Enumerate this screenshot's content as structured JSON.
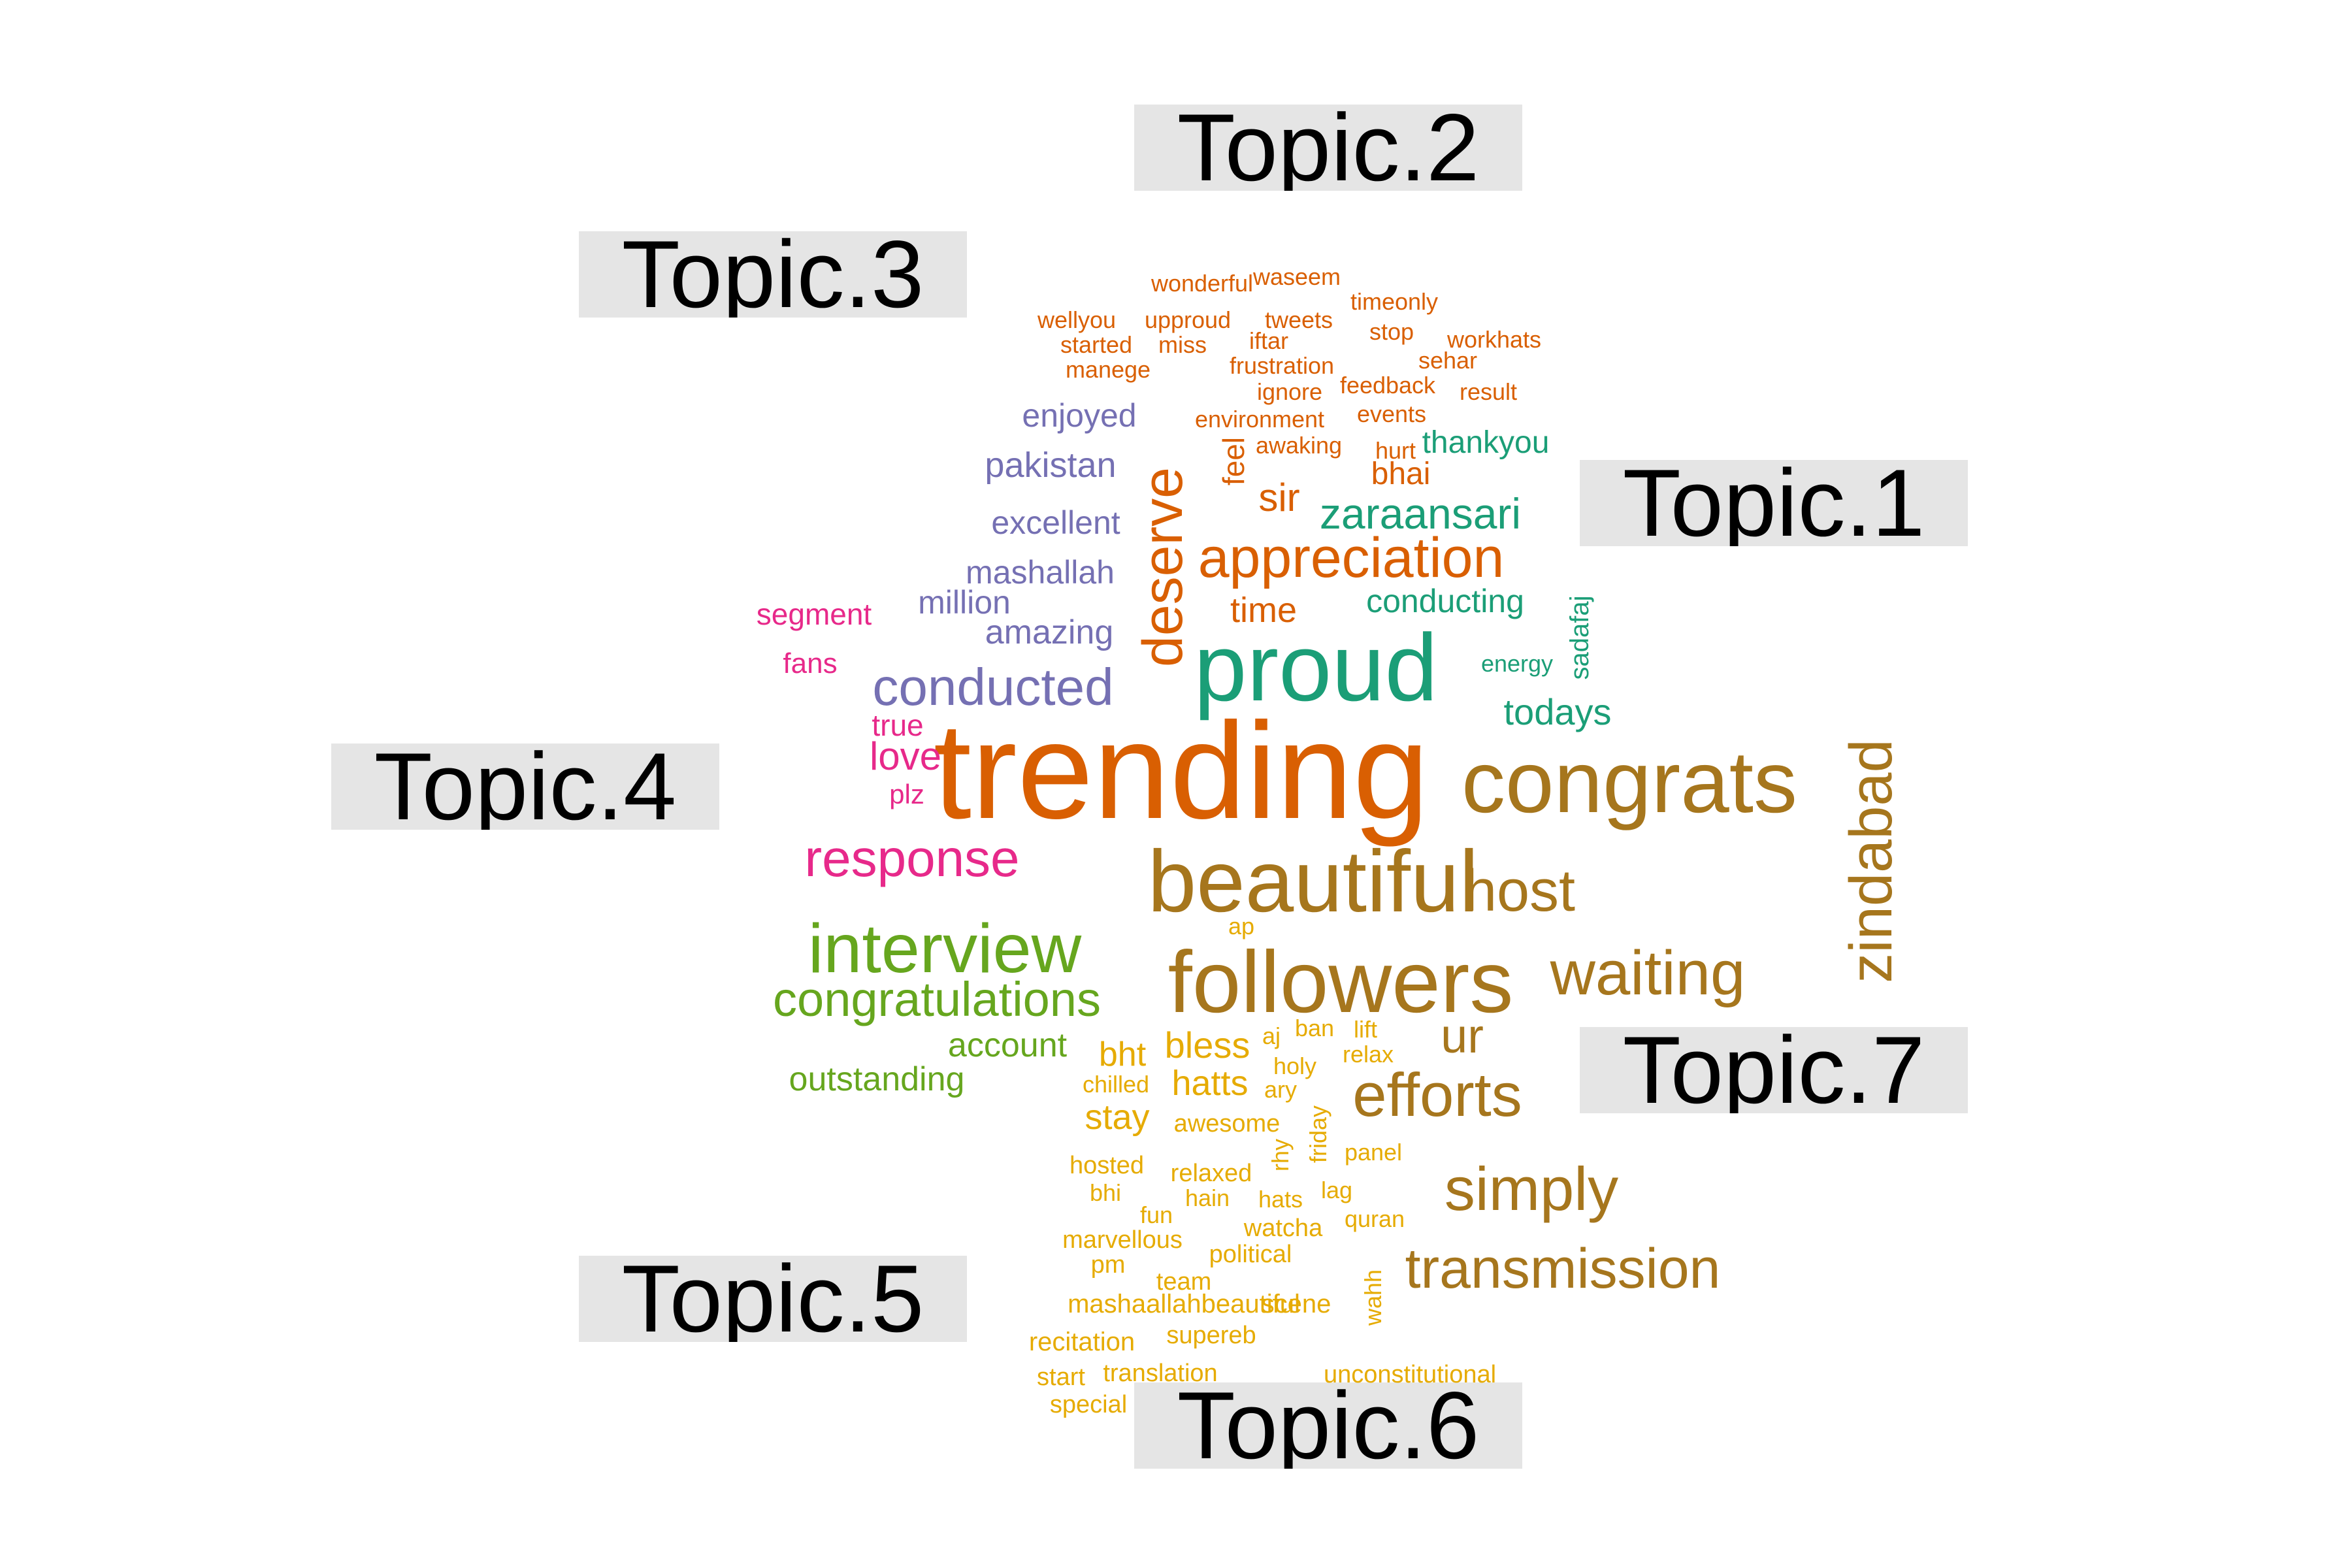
{
  "colors": {
    "topic1": "#1b9e77",
    "topic2": "#d95f02",
    "topic3": "#7570b3",
    "topic4": "#e7298a",
    "topic5": "#66a61e",
    "topic6": "#e6ab02",
    "topic7": "#a6761d",
    "label_background": "#e5e5e5",
    "label_text": "#000000"
  },
  "topics": [
    "Topic.1",
    "Topic.2",
    "Topic.3",
    "Topic.4",
    "Topic.5",
    "Topic.6",
    "Topic.7"
  ],
  "words": [
    {
      "text": "wonderful",
      "topic": 2
    },
    {
      "text": "waseem",
      "topic": 2
    },
    {
      "text": "timeonly",
      "topic": 2
    },
    {
      "text": "wellyou",
      "topic": 2
    },
    {
      "text": "upproud",
      "topic": 2
    },
    {
      "text": "tweets",
      "topic": 2
    },
    {
      "text": "stop",
      "topic": 2
    },
    {
      "text": "workhats",
      "topic": 2
    },
    {
      "text": "started",
      "topic": 2
    },
    {
      "text": "miss",
      "topic": 2
    },
    {
      "text": "iftar",
      "topic": 2
    },
    {
      "text": "sehar",
      "topic": 2
    },
    {
      "text": "manege",
      "topic": 2
    },
    {
      "text": "frustration",
      "topic": 2
    },
    {
      "text": "ignore",
      "topic": 2
    },
    {
      "text": "feedback",
      "topic": 2
    },
    {
      "text": "result",
      "topic": 2
    },
    {
      "text": "environment",
      "topic": 2
    },
    {
      "text": "events",
      "topic": 2
    },
    {
      "text": "awaking",
      "topic": 2
    },
    {
      "text": "hurt",
      "topic": 2
    },
    {
      "text": "feel",
      "topic": 2
    },
    {
      "text": "bhai",
      "topic": 2
    },
    {
      "text": "sir",
      "topic": 2
    },
    {
      "text": "deserve",
      "topic": 2
    },
    {
      "text": "appreciation",
      "topic": 2
    },
    {
      "text": "time",
      "topic": 2
    },
    {
      "text": "trending",
      "topic": 2
    },
    {
      "text": "thankyou",
      "topic": 1
    },
    {
      "text": "zaraansari",
      "topic": 1
    },
    {
      "text": "conducting",
      "topic": 1
    },
    {
      "text": "sadafaj",
      "topic": 1
    },
    {
      "text": "energy",
      "topic": 1
    },
    {
      "text": "proud",
      "topic": 1
    },
    {
      "text": "todays",
      "topic": 1
    },
    {
      "text": "enjoyed",
      "topic": 3
    },
    {
      "text": "pakistan",
      "topic": 3
    },
    {
      "text": "excellent",
      "topic": 3
    },
    {
      "text": "mashallah",
      "topic": 3
    },
    {
      "text": "million",
      "topic": 3
    },
    {
      "text": "amazing",
      "topic": 3
    },
    {
      "text": "conducted",
      "topic": 3
    },
    {
      "text": "segment",
      "topic": 4
    },
    {
      "text": "fans",
      "topic": 4
    },
    {
      "text": "true",
      "topic": 4
    },
    {
      "text": "love",
      "topic": 4
    },
    {
      "text": "plz",
      "topic": 4
    },
    {
      "text": "response",
      "topic": 4
    },
    {
      "text": "interview",
      "topic": 5
    },
    {
      "text": "congratulations",
      "topic": 5
    },
    {
      "text": "account",
      "topic": 5
    },
    {
      "text": "outstanding",
      "topic": 5
    },
    {
      "text": "congrats",
      "topic": 7
    },
    {
      "text": "beautiful",
      "topic": 7
    },
    {
      "text": "host",
      "topic": 7
    },
    {
      "text": "followers",
      "topic": 7
    },
    {
      "text": "waiting",
      "topic": 7
    },
    {
      "text": "zindabad",
      "topic": 7
    },
    {
      "text": "ur",
      "topic": 7
    },
    {
      "text": "efforts",
      "topic": 7
    },
    {
      "text": "simply",
      "topic": 7
    },
    {
      "text": "transmission",
      "topic": 7
    },
    {
      "text": "ap",
      "topic": 6
    },
    {
      "text": "bht",
      "topic": 6
    },
    {
      "text": "bless",
      "topic": 6
    },
    {
      "text": "aj",
      "topic": 6
    },
    {
      "text": "ban",
      "topic": 6
    },
    {
      "text": "lift",
      "topic": 6
    },
    {
      "text": "relax",
      "topic": 6
    },
    {
      "text": "holy",
      "topic": 6
    },
    {
      "text": "chilled",
      "topic": 6
    },
    {
      "text": "hatts",
      "topic": 6
    },
    {
      "text": "ary",
      "topic": 6
    },
    {
      "text": "stay",
      "topic": 6
    },
    {
      "text": "awesome",
      "topic": 6
    },
    {
      "text": "friday",
      "topic": 6
    },
    {
      "text": "rhy",
      "topic": 6
    },
    {
      "text": "hosted",
      "topic": 6
    },
    {
      "text": "relaxed",
      "topic": 6
    },
    {
      "text": "panel",
      "topic": 6
    },
    {
      "text": "bhi",
      "topic": 6
    },
    {
      "text": "hain",
      "topic": 6
    },
    {
      "text": "hats",
      "topic": 6
    },
    {
      "text": "lag",
      "topic": 6
    },
    {
      "text": "fun",
      "topic": 6
    },
    {
      "text": "quran",
      "topic": 6
    },
    {
      "text": "marvellous",
      "topic": 6
    },
    {
      "text": "watcha",
      "topic": 6
    },
    {
      "text": "political",
      "topic": 6
    },
    {
      "text": "pm",
      "topic": 6
    },
    {
      "text": "team",
      "topic": 6
    },
    {
      "text": "wahh",
      "topic": 6
    },
    {
      "text": "mashaallahbeautiful",
      "topic": 6
    },
    {
      "text": "scene",
      "topic": 6
    },
    {
      "text": "recitation",
      "topic": 6
    },
    {
      "text": "supereb",
      "topic": 6
    },
    {
      "text": "start",
      "topic": 6
    },
    {
      "text": "translation",
      "topic": 6
    },
    {
      "text": "unconstitutional",
      "topic": 6
    },
    {
      "text": "special",
      "topic": 6
    }
  ]
}
